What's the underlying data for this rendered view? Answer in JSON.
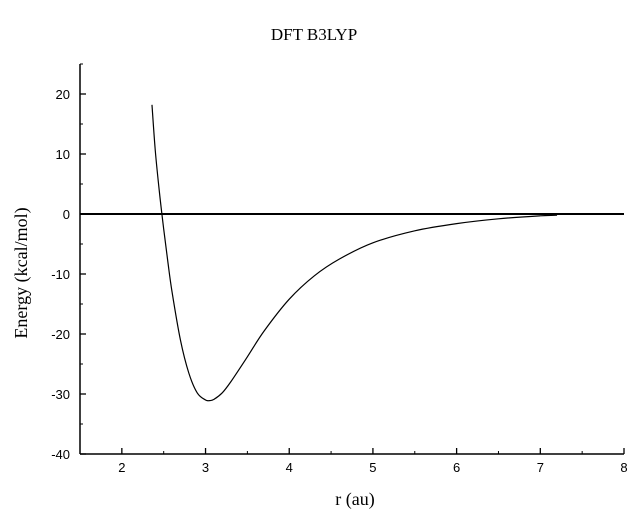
{
  "chart_data": {
    "type": "line",
    "title": "DFT B3LYP",
    "xlabel": "r (au)",
    "ylabel": "Energy (kcal/mol)",
    "xlim": [
      1.5,
      8
    ],
    "ylim": [
      -40,
      25
    ],
    "x_ticks": [
      2,
      3,
      4,
      5,
      6,
      7,
      8
    ],
    "y_ticks": [
      -40,
      -30,
      -20,
      -10,
      0,
      10,
      20
    ],
    "grid": false,
    "legend": "none",
    "reference_line_y": 0,
    "series": [
      {
        "color": "#000000",
        "x": [
          2.36,
          2.4,
          2.45,
          2.5,
          2.55,
          2.6,
          2.7,
          2.8,
          2.9,
          3.0,
          3.05,
          3.1,
          3.2,
          3.3,
          3.5,
          3.7,
          4.0,
          4.3,
          4.6,
          5.0,
          5.5,
          6.0,
          6.5,
          7.0,
          7.2
        ],
        "y": [
          18.2,
          10.5,
          3.5,
          -2.5,
          -8.0,
          -13.0,
          -21.0,
          -26.5,
          -29.8,
          -31.0,
          -31.1,
          -30.9,
          -29.8,
          -28.0,
          -23.8,
          -19.5,
          -14.2,
          -10.3,
          -7.5,
          -4.8,
          -2.8,
          -1.6,
          -0.8,
          -0.3,
          -0.2
        ]
      }
    ]
  }
}
